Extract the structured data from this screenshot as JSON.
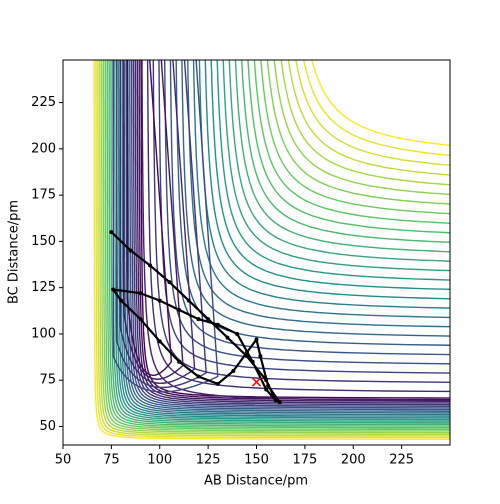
{
  "chart_data": {
    "type": "line",
    "x_label": "AB Distance/pm",
    "y_label": "BC Distance/pm",
    "xlim": [
      50,
      250
    ],
    "ylim": [
      40,
      248
    ],
    "xticks": [
      50,
      75,
      100,
      125,
      150,
      175,
      200,
      225
    ],
    "yticks": [
      50,
      75,
      100,
      125,
      150,
      175,
      200,
      225
    ],
    "x": [
      75,
      85,
      95,
      105,
      115,
      125,
      135,
      145,
      155,
      160,
      155,
      148,
      140,
      130,
      120,
      110,
      100,
      90,
      76,
      80,
      90,
      100,
      110,
      120,
      130,
      138,
      145,
      150,
      152,
      156,
      162
    ],
    "values": [
      155,
      145,
      137,
      128,
      118,
      108,
      98,
      88,
      75,
      64,
      70,
      85,
      100,
      105,
      108,
      113,
      118,
      122,
      124,
      118,
      108,
      96,
      85,
      77,
      73,
      80,
      90,
      97,
      88,
      72,
      63
    ],
    "color": "#000000",
    "points": [
      {
        "x": 150,
        "y": 74,
        "color": "#ff0000"
      }
    ]
  }
}
